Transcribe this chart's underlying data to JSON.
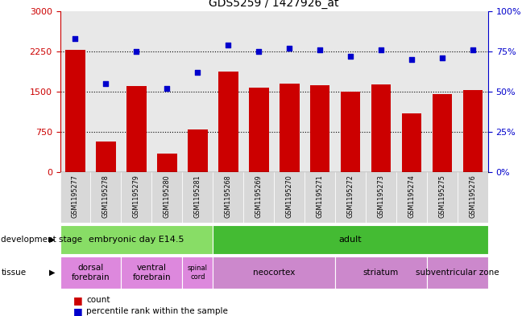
{
  "title": "GDS5259 / 1427926_at",
  "samples": [
    "GSM1195277",
    "GSM1195278",
    "GSM1195279",
    "GSM1195280",
    "GSM1195281",
    "GSM1195268",
    "GSM1195269",
    "GSM1195270",
    "GSM1195271",
    "GSM1195272",
    "GSM1195273",
    "GSM1195274",
    "GSM1195275",
    "GSM1195276"
  ],
  "counts": [
    2280,
    570,
    1600,
    350,
    800,
    1870,
    1580,
    1650,
    1620,
    1500,
    1640,
    1100,
    1460,
    1530
  ],
  "percentiles": [
    83,
    55,
    75,
    52,
    62,
    79,
    75,
    77,
    76,
    72,
    76,
    70,
    71,
    76
  ],
  "ylim_left": [
    0,
    3000
  ],
  "ylim_right": [
    0,
    100
  ],
  "yticks_left": [
    0,
    750,
    1500,
    2250,
    3000
  ],
  "yticks_right": [
    0,
    25,
    50,
    75,
    100
  ],
  "bar_color": "#cc0000",
  "dot_color": "#0000cc",
  "plot_bg_color": "#e8e8e8",
  "fig_bg_color": "#ffffff",
  "dev_stage_groups": [
    {
      "label": "embryonic day E14.5",
      "start": 0,
      "end": 5,
      "color": "#88dd66"
    },
    {
      "label": "adult",
      "start": 5,
      "end": 14,
      "color": "#44bb33"
    }
  ],
  "tissue_groups": [
    {
      "label": "dorsal\nforebrain",
      "start": 0,
      "end": 2,
      "color": "#dd88dd"
    },
    {
      "label": "ventral\nforebrain",
      "start": 2,
      "end": 4,
      "color": "#dd88dd"
    },
    {
      "label": "spinal\ncord",
      "start": 4,
      "end": 5,
      "color": "#dd88dd"
    },
    {
      "label": "neocortex",
      "start": 5,
      "end": 9,
      "color": "#cc88cc"
    },
    {
      "label": "striatum",
      "start": 9,
      "end": 12,
      "color": "#cc88cc"
    },
    {
      "label": "subventricular zone",
      "start": 12,
      "end": 14,
      "color": "#cc88cc"
    }
  ],
  "left_axis_color": "#cc0000",
  "right_axis_color": "#0000cc"
}
